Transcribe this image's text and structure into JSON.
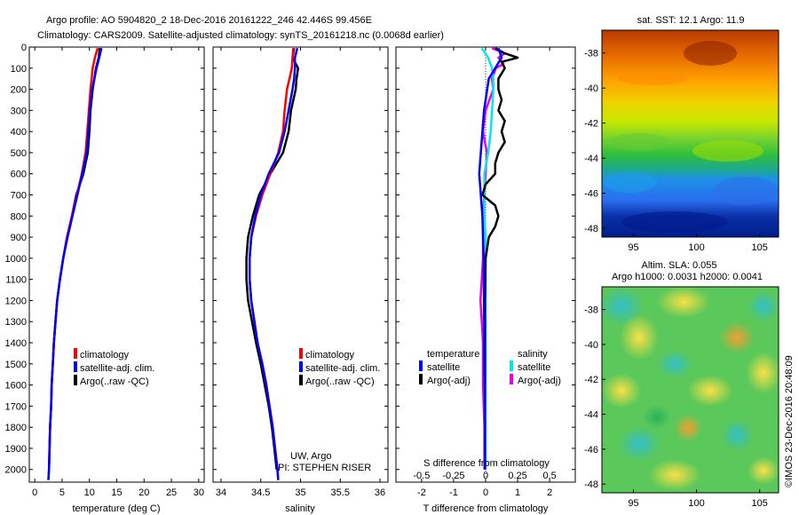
{
  "title": {
    "line1": "Argo profile: AO 5904820_2 18-Dec-2016 20161222_246 42.446S 99.456E",
    "line2": "Climatology: CARS2009. Satellite-adjusted climatology: synTS_20161218.nc (0.0068d earlier)"
  },
  "sst_map": {
    "title": "sat. SST: 12.1  Argo: 11.9",
    "x_ticks": [
      "95",
      "100",
      "105"
    ],
    "y_ticks": [
      "-38",
      "-40",
      "-42",
      "-44",
      "-46",
      "-48"
    ]
  },
  "sla_map": {
    "title1": "Altim. SLA: 0.055",
    "title2": "Argo h1000: 0.0031 h2000: 0.0041",
    "x_ticks": [
      "95",
      "100",
      "105"
    ],
    "y_ticks": [
      "-38",
      "-40",
      "-42",
      "-44",
      "-46",
      "-48"
    ]
  },
  "credit": "©IMOS 23-Dec-2016 20:48:09",
  "colors": {
    "climatology": "#ff0000",
    "satellite_adj": "#0000ff",
    "argo": "#000000",
    "sat_salinity": "#00e8e8",
    "argo_salinity": "#e600e6"
  },
  "chart_data": [
    {
      "type": "line",
      "name": "temperature",
      "xlabel": "temperature (deg C)",
      "ylabel": "",
      "xlim": [
        -1,
        31
      ],
      "ylim": [
        2060,
        0
      ],
      "x_ticks": [
        "0",
        "5",
        "10",
        "15",
        "20",
        "25",
        "30"
      ],
      "y_ticks": [
        "0",
        "100",
        "200",
        "300",
        "400",
        "500",
        "600",
        "700",
        "800",
        "900",
        "1000",
        "1100",
        "1200",
        "1300",
        "1400",
        "1500",
        "1600",
        "1700",
        "1800",
        "1900",
        "2000"
      ],
      "legend": [
        "climatology",
        "satellite-adj. clim.",
        "Argo(..raw -QC)"
      ],
      "legend_position": "center-right",
      "series": [
        {
          "name": "climatology",
          "depth": [
            5,
            50,
            100,
            150,
            200,
            300,
            400,
            500,
            600,
            700,
            800,
            900,
            1000,
            1100,
            1200,
            1300,
            1400,
            1500,
            1600,
            1700,
            1800,
            1900,
            2000,
            2050
          ],
          "values": [
            11.5,
            11.0,
            10.6,
            10.4,
            10.2,
            9.9,
            9.6,
            9.3,
            8.6,
            7.7,
            6.8,
            5.9,
            5.2,
            4.6,
            4.1,
            3.8,
            3.5,
            3.3,
            3.1,
            3.0,
            2.8,
            2.7,
            2.6,
            2.5
          ]
        },
        {
          "name": "satellite-adj. clim.",
          "depth": [
            5,
            50,
            100,
            150,
            200,
            300,
            400,
            500,
            600,
            700,
            800,
            900,
            1000,
            1100,
            1200,
            1300,
            1400,
            1500,
            1600,
            1700,
            1800,
            1900,
            2000,
            2050
          ],
          "values": [
            12.2,
            11.8,
            11.3,
            10.9,
            10.5,
            10.1,
            9.8,
            9.5,
            8.7,
            7.8,
            6.9,
            6.0,
            5.2,
            4.6,
            4.1,
            3.8,
            3.5,
            3.3,
            3.1,
            3.0,
            2.8,
            2.7,
            2.6,
            2.5
          ]
        },
        {
          "name": "Argo(..raw -QC)",
          "depth": [
            5,
            50,
            100,
            150,
            200,
            300,
            400,
            500,
            600,
            700,
            800,
            900,
            1000,
            1100,
            1200,
            1300,
            1400,
            1500,
            1600,
            1700,
            1800,
            1900,
            2000
          ],
          "values": [
            11.9,
            11.7,
            11.2,
            10.9,
            10.6,
            10.2,
            10.0,
            9.7,
            8.9,
            7.6,
            6.8,
            5.9,
            5.2,
            4.6,
            4.1,
            3.8,
            3.5,
            3.3,
            3.1,
            3.0,
            2.8,
            2.7,
            2.6
          ]
        }
      ]
    },
    {
      "type": "line",
      "name": "salinity",
      "xlabel": "salinity",
      "ylabel": "",
      "xlim": [
        33.9,
        36.1
      ],
      "ylim": [
        2060,
        0
      ],
      "x_ticks": [
        "34",
        "34.5",
        "35",
        "35.5",
        "36"
      ],
      "legend": [
        "climatology",
        "satellite-adj. clim.",
        "Argo(..raw -QC)"
      ],
      "legend_position": "center-right",
      "annotation1": "UW, Argo",
      "annotation2": "PI: STEPHEN RISER",
      "series": [
        {
          "name": "climatology",
          "depth": [
            5,
            50,
            100,
            150,
            200,
            300,
            400,
            500,
            600,
            700,
            800,
            900,
            1000,
            1100,
            1200,
            1300,
            1400,
            1500,
            1600,
            1700,
            1800,
            1900,
            2000,
            2050
          ],
          "values": [
            34.91,
            34.9,
            34.89,
            34.86,
            34.83,
            34.8,
            34.78,
            34.72,
            34.62,
            34.52,
            34.44,
            34.38,
            34.36,
            34.36,
            34.38,
            34.42,
            34.46,
            34.52,
            34.57,
            34.61,
            34.65,
            34.68,
            34.71,
            34.72
          ]
        },
        {
          "name": "satellite-adj. clim.",
          "depth": [
            5,
            50,
            100,
            150,
            200,
            300,
            400,
            500,
            600,
            700,
            800,
            900,
            1000,
            1100,
            1200,
            1300,
            1400,
            1500,
            1600,
            1700,
            1800,
            1900,
            2000,
            2050
          ],
          "values": [
            34.96,
            34.93,
            34.93,
            34.92,
            34.9,
            34.85,
            34.8,
            34.73,
            34.6,
            34.5,
            34.43,
            34.38,
            34.36,
            34.36,
            34.38,
            34.42,
            34.46,
            34.52,
            34.57,
            34.61,
            34.65,
            34.68,
            34.71,
            34.72
          ]
        },
        {
          "name": "Argo(..raw -QC)",
          "depth": [
            5,
            50,
            100,
            150,
            200,
            300,
            400,
            500,
            600,
            700,
            800,
            900,
            1000,
            1100,
            1200,
            1300,
            1400,
            1500,
            1600,
            1700,
            1800,
            1900,
            2000
          ],
          "values": [
            34.92,
            34.9,
            34.97,
            34.95,
            34.94,
            34.88,
            34.85,
            34.78,
            34.62,
            34.48,
            34.4,
            34.34,
            34.32,
            34.32,
            34.34,
            34.39,
            34.44,
            34.5,
            34.55,
            34.6,
            34.64,
            34.67,
            34.7
          ]
        }
      ]
    },
    {
      "type": "line",
      "name": "differences",
      "xlabel": "T difference from climatology",
      "xlabel2": "S difference from climatology",
      "xlim": [
        -2.8,
        2.8
      ],
      "ylim": [
        2060,
        0
      ],
      "x_ticks": [
        "-2",
        "-1",
        "0",
        "1",
        "2"
      ],
      "x2_ticks": [
        "-0.5",
        "-0.25",
        "0",
        "0.25",
        "0.5"
      ],
      "legend_headers": [
        "temperature",
        "salinity"
      ],
      "legend": [
        "satellite",
        "Argo(-adj)",
        "satellite",
        "Argo(-adj)"
      ],
      "legend_position": "center",
      "series": [
        {
          "name": "temperature satellite",
          "depth": [
            5,
            50,
            100,
            150,
            200,
            300,
            400,
            500,
            600,
            700,
            800,
            900,
            1000,
            1200,
            1400,
            1600,
            1800,
            2000
          ],
          "values": [
            0.4,
            0.5,
            0.3,
            0.1,
            0.05,
            -0.05,
            -0.1,
            -0.15,
            -0.2,
            -0.15,
            -0.1,
            -0.08,
            -0.06,
            -0.05,
            -0.05,
            -0.03,
            -0.02,
            -0.02
          ]
        },
        {
          "name": "temperature Argo(-adj)",
          "depth": [
            5,
            30,
            50,
            70,
            100,
            150,
            200,
            250,
            300,
            350,
            400,
            450,
            500,
            550,
            600,
            650,
            700,
            750,
            800,
            850,
            900,
            1000,
            1200,
            1400,
            1600,
            1800,
            2000
          ],
          "values": [
            0.3,
            0.6,
            1.0,
            0.5,
            0.6,
            0.4,
            0.4,
            0.5,
            0.4,
            0.6,
            0.5,
            0.6,
            0.4,
            0.3,
            0.3,
            0.0,
            -0.1,
            0.3,
            0.4,
            0.3,
            0.1,
            0.0,
            -0.02,
            -0.02,
            -0.02,
            -0.02,
            -0.02
          ]
        },
        {
          "name": "salinity satellite",
          "depth": [
            5,
            50,
            100,
            150,
            200,
            300,
            400,
            500,
            600,
            700,
            800,
            900,
            1000,
            1200,
            1400,
            1600,
            1800,
            2000
          ],
          "values": [
            -0.03,
            0.02,
            0.05,
            0.06,
            0.06,
            0.05,
            0.04,
            0.02,
            -0.01,
            -0.01,
            -0.01,
            0.0,
            0.0,
            0.0,
            0.0,
            0.0,
            0.0,
            0.0
          ]
        },
        {
          "name": "salinity Argo(-adj)",
          "depth": [
            5,
            30,
            50,
            80,
            100,
            150,
            200,
            250,
            300,
            400,
            500,
            600,
            700,
            800,
            900,
            1000,
            1100,
            1200,
            1400,
            1600,
            1800,
            2000
          ],
          "values": [
            0.05,
            0.15,
            0.1,
            0.14,
            0.08,
            0.05,
            0.06,
            0.03,
            0.0,
            -0.02,
            0.01,
            0.0,
            -0.01,
            -0.02,
            -0.02,
            -0.02,
            -0.03,
            -0.04,
            -0.02,
            -0.02,
            -0.01,
            -0.01
          ]
        }
      ]
    }
  ]
}
